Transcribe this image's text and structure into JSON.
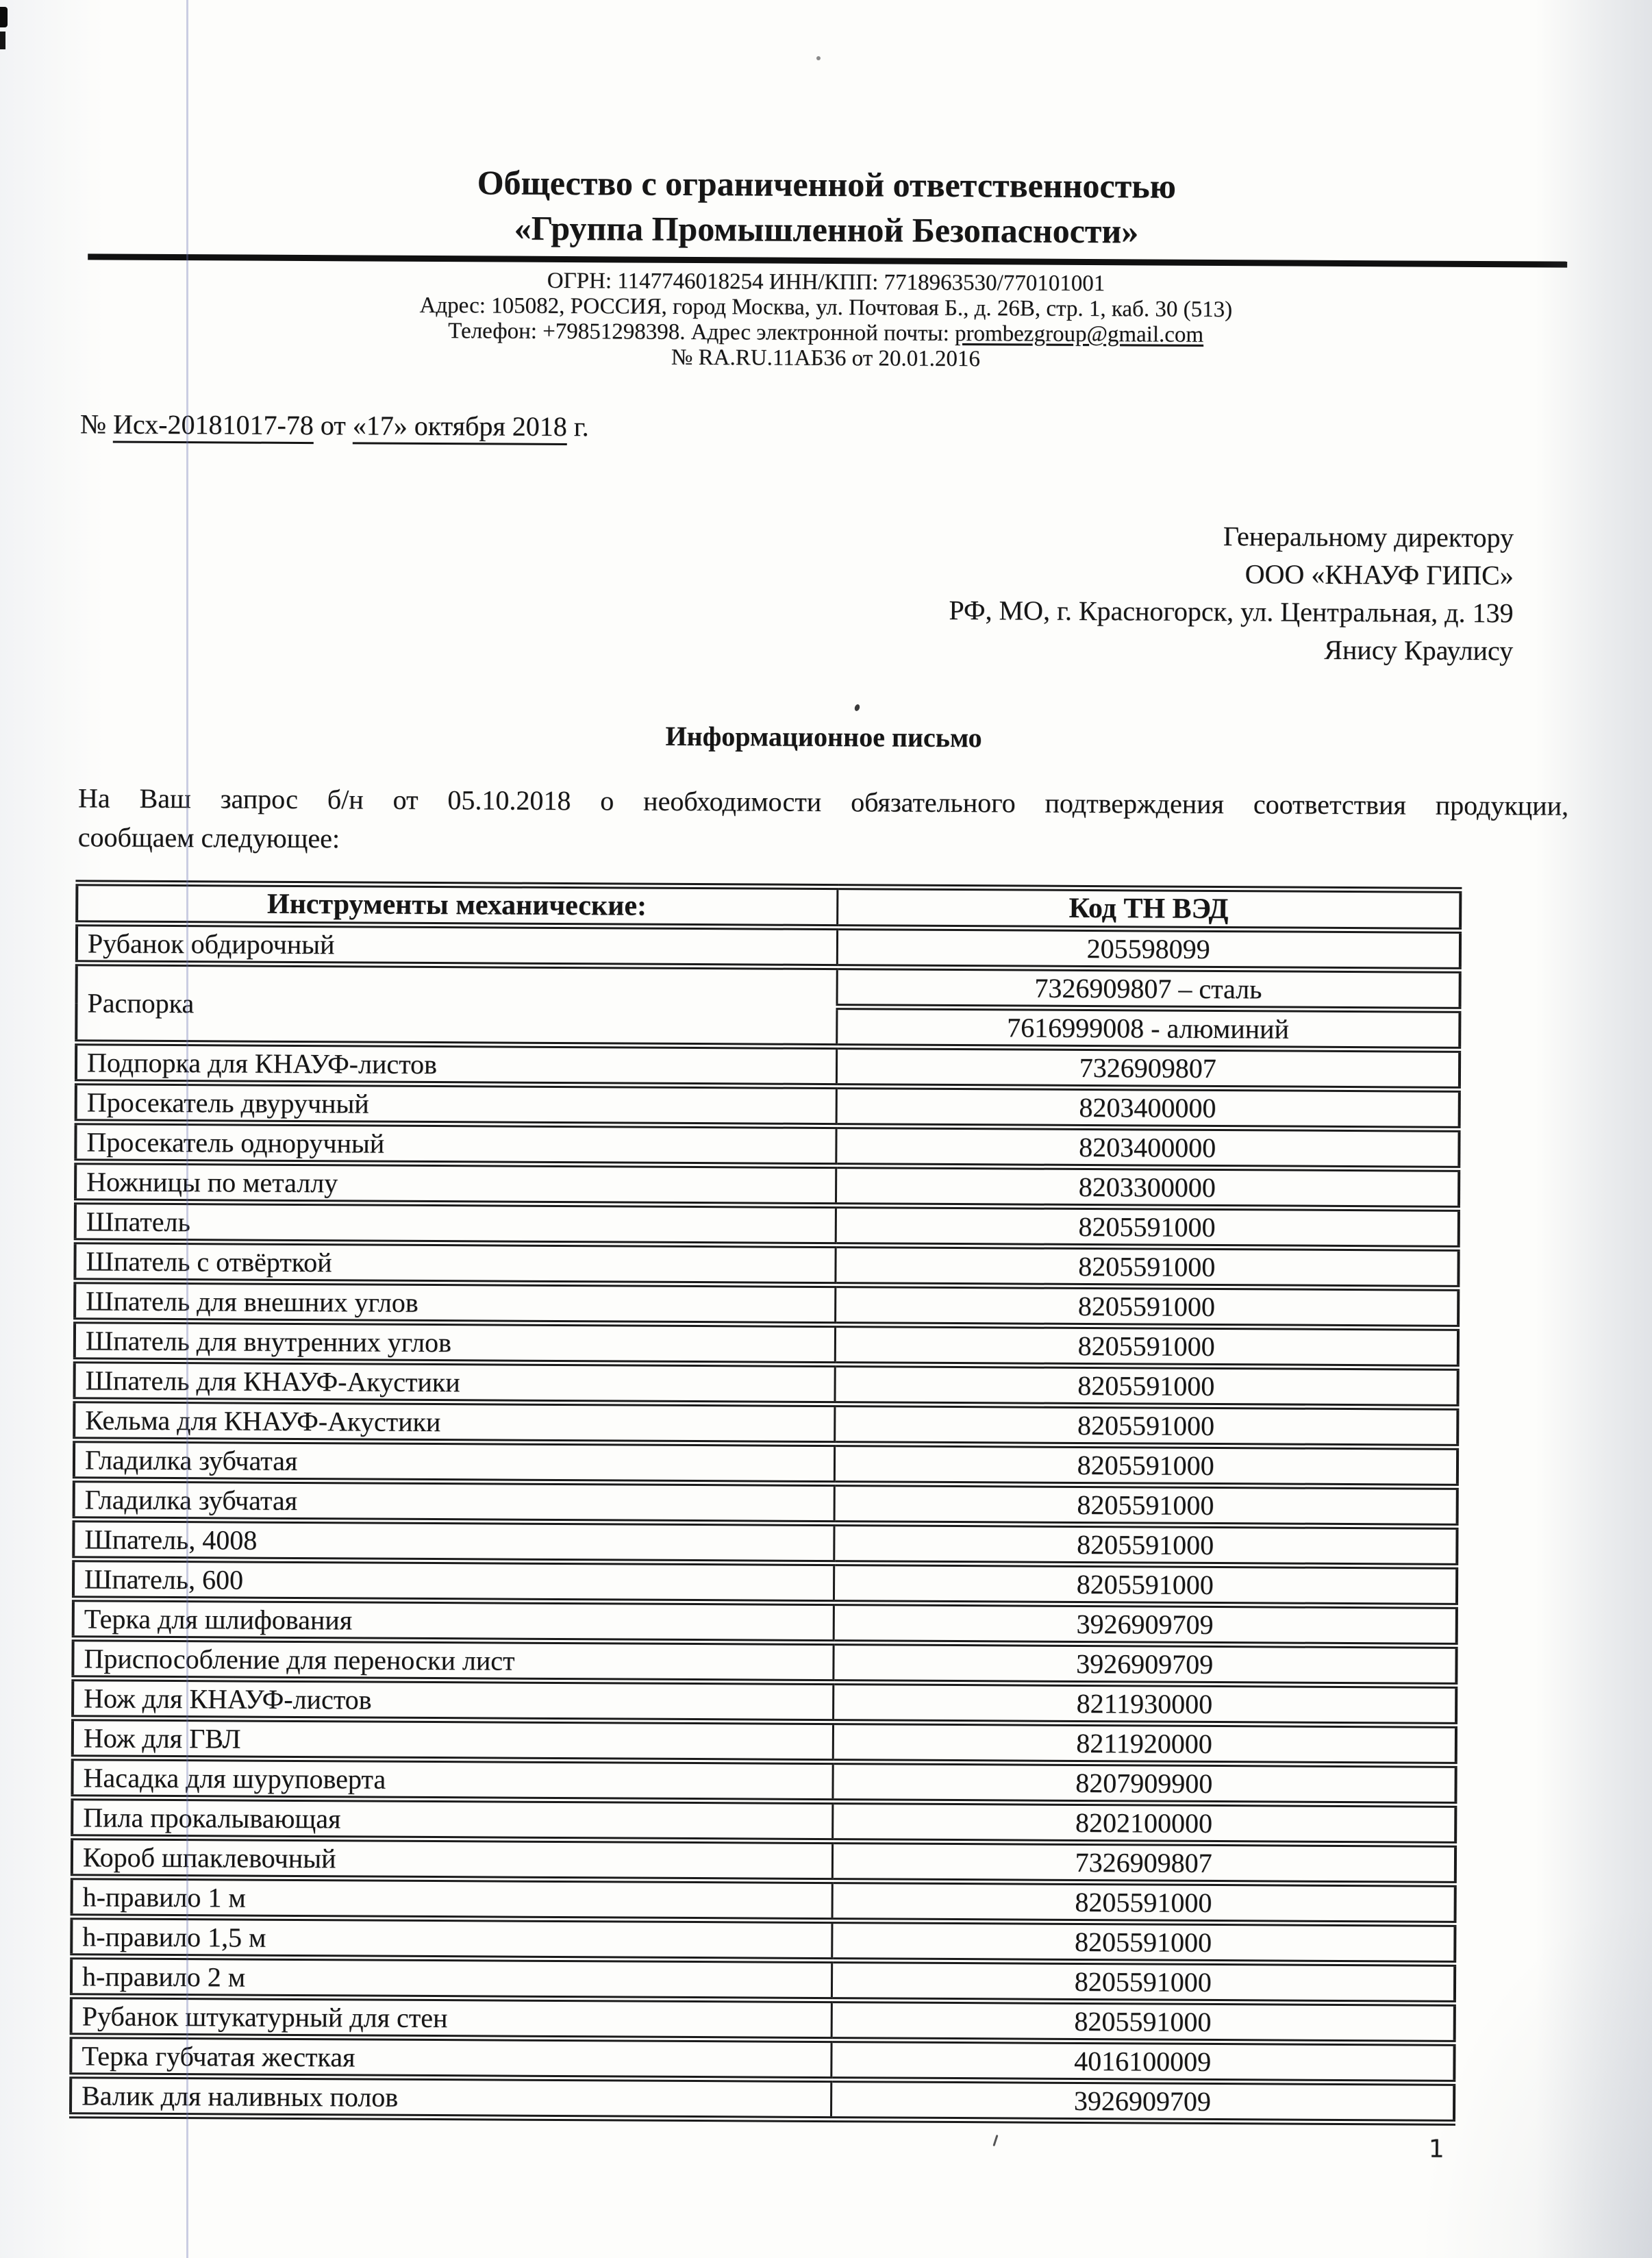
{
  "doc": {
    "company_line1": "Общество с ограниченной ответственностью",
    "company_line2": "«Группа Промышленной Безопасности»",
    "reg_line": "ОГРН: 1147746018254 ИНН/КПП: 7718963530/770101001",
    "address_line": "Адрес: 105082, РОССИЯ, город Москва, ул. Почтовая Б., д. 26В, стр. 1, каб. 30 (513)",
    "contact_prefix": "Телефон: +79851298398. Адрес электронной почты: ",
    "email": "prombezgroup@gmail.com",
    "attestation_line": "№ RA.RU.11АБ36 от 20.01.2016",
    "ref": {
      "label": "№ ",
      "number": "Исх-20181017-78",
      "conj": " от ",
      "date": "«17» октября 2018",
      "tail": " г."
    },
    "recipient": [
      "Генеральному директору",
      "ООО «КНАУФ ГИПС»",
      "РФ, МО, г. Красногорск, ул. Центральная, д. 139",
      "Янису Краулису"
    ],
    "title": "Информационное письмо",
    "intro_lines": [
      "На Ваш запрос б/н от 05.10.2018 о необходимости обязательного подтверждения соответствия продукции,",
      "сообщаем следующее:"
    ],
    "page_number": "1"
  },
  "table": {
    "col1_header": "Инструменты механические:",
    "col2_header": "Код ТН ВЭД",
    "rows": [
      {
        "tool": "Рубанок обдирочный",
        "codes": [
          "205598099"
        ]
      },
      {
        "tool": "Распорка",
        "codes": [
          "7326909807 – сталь",
          "7616999008 - алюминий"
        ]
      },
      {
        "tool": "Подпорка для КНАУФ-листов",
        "codes": [
          "7326909807"
        ]
      },
      {
        "tool": "Просекатель двуручный",
        "codes": [
          "8203400000"
        ]
      },
      {
        "tool": "Просекатель одноручный",
        "codes": [
          "8203400000"
        ]
      },
      {
        "tool": "Ножницы по металлу",
        "codes": [
          "8203300000"
        ]
      },
      {
        "tool": "Шпатель",
        "codes": [
          "8205591000"
        ]
      },
      {
        "tool": "Шпатель с отвёрткой",
        "codes": [
          "8205591000"
        ]
      },
      {
        "tool": "Шпатель для внешних углов",
        "codes": [
          "8205591000"
        ]
      },
      {
        "tool": "Шпатель для внутренних углов",
        "codes": [
          "8205591000"
        ]
      },
      {
        "tool": "Шпатель для КНАУФ-Акустики",
        "codes": [
          "8205591000"
        ]
      },
      {
        "tool": "Кельма для КНАУФ-Акустики",
        "codes": [
          "8205591000"
        ]
      },
      {
        "tool": "Гладилка зубчатая",
        "codes": [
          "8205591000"
        ]
      },
      {
        "tool": "Гладилка зубчатая",
        "codes": [
          "8205591000"
        ]
      },
      {
        "tool": "Шпатель, 4008",
        "codes": [
          "8205591000"
        ]
      },
      {
        "tool": "Шпатель, 600",
        "codes": [
          "8205591000"
        ]
      },
      {
        "tool": "Терка для шлифования",
        "codes": [
          "3926909709"
        ]
      },
      {
        "tool": "Приспособление для переноски лист",
        "codes": [
          "3926909709"
        ]
      },
      {
        "tool": "Нож для КНАУФ-листов",
        "codes": [
          "8211930000"
        ]
      },
      {
        "tool": "Нож для ГВЛ",
        "codes": [
          "8211920000"
        ]
      },
      {
        "tool": "Насадка для шуруповерта",
        "codes": [
          "8207909900"
        ]
      },
      {
        "tool": "Пила прокалывающая",
        "codes": [
          "8202100000"
        ]
      },
      {
        "tool": "Короб шпаклевочный",
        "codes": [
          "7326909807"
        ]
      },
      {
        "tool": "h-правило 1 м",
        "codes": [
          "8205591000"
        ]
      },
      {
        "tool": "h-правило 1,5 м",
        "codes": [
          "8205591000"
        ]
      },
      {
        "tool": "h-правило 2 м",
        "codes": [
          "8205591000"
        ]
      },
      {
        "tool": "Рубанок штукатурный для стен",
        "codes": [
          "8205591000"
        ]
      },
      {
        "tool": "Терка губчатая жесткая",
        "codes": [
          "4016100009"
        ]
      },
      {
        "tool": "Валик для наливных полов",
        "codes": [
          "3926909709"
        ]
      }
    ]
  }
}
